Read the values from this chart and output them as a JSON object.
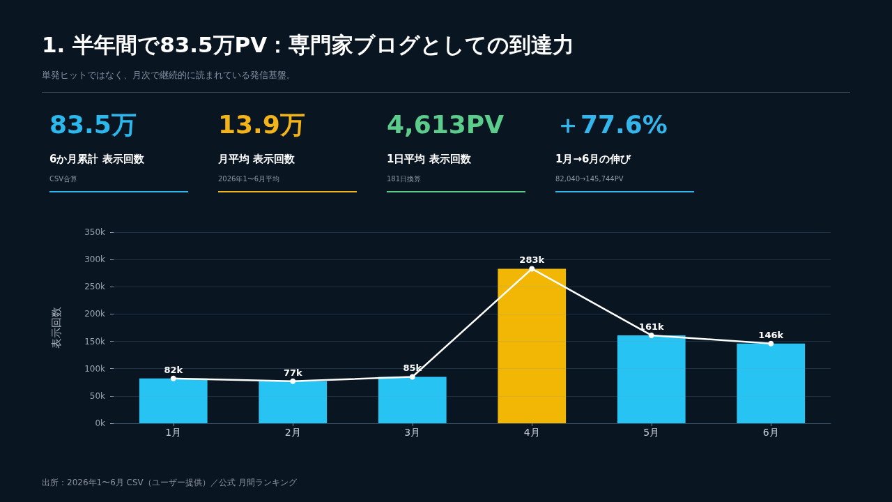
{
  "chart_data": [
    {
      "type": "other",
      "title": "1. 半年間で83.5万PV：専門家ブログとしての到達力",
      "subtitle": "単発ヒットではなく、月次で継続的に読まれている発信基盤。",
      "annotations": [
        "83.5万",
        "6か月累計 表示回数",
        "CSV合算",
        "13.9万",
        "月平均 表示回数",
        "2026年1〜6月平均",
        "4,613PV",
        "1日平均 表示回数",
        "181日換算",
        "＋77.6%",
        "1月→6月の伸び",
        "82,040→145,744PV"
      ],
      "colors": [
        "#2bb8ec",
        "#f2b418",
        "#5ccc8c",
        "#32b6ec"
      ]
    },
    {
      "type": "bar",
      "categories": [
        "1月",
        "2月",
        "3月",
        "4月",
        "5月",
        "6月"
      ],
      "ylabel": "表示回数",
      "ylim": [
        0,
        350000
      ],
      "yticks": [
        {
          "value": 0,
          "label": "0k"
        },
        {
          "value": 50000,
          "label": "50k"
        },
        {
          "value": 100000,
          "label": "100k"
        },
        {
          "value": 150000,
          "label": "150k"
        },
        {
          "value": 200000,
          "label": "200k"
        },
        {
          "value": 250000,
          "label": "250k"
        },
        {
          "value": 300000,
          "label": "300k"
        },
        {
          "value": 350000,
          "label": "350k"
        }
      ],
      "grid": "y",
      "marker": "circle",
      "series": [
        {
          "type": "bar",
          "colors": [
            "#27c3f3",
            "#27c3f3",
            "#27c3f3",
            "#f2b705",
            "#27c3f3",
            "#27c3f3"
          ],
          "values": [
            82000,
            77000,
            85000,
            283000,
            161000,
            146000
          ],
          "value_labels": [
            "82k",
            "77k",
            "85k",
            "283k",
            "161k",
            "146k"
          ]
        },
        {
          "type": "line",
          "color": "#ffffff",
          "values": [
            82000,
            77000,
            85000,
            283000,
            161000,
            146000
          ]
        }
      ],
      "annotations": [
        "出所：2026年1〜6月 CSV（ユーザー提供）／公式 月間ランキング"
      ]
    }
  ]
}
